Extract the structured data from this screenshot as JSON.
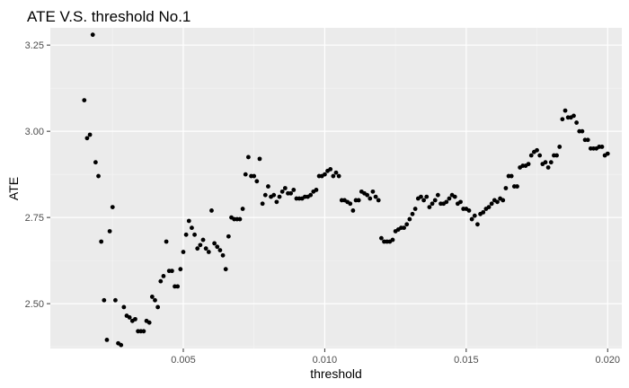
{
  "chart_data": {
    "type": "scatter",
    "title": "ATE V.S. threshold No.1",
    "xlabel": "threshold",
    "ylabel": "ATE",
    "xlim": [
      0.0003,
      0.0205
    ],
    "ylim": [
      2.37,
      3.3
    ],
    "xticks": [
      0.005,
      0.01,
      0.015,
      0.02
    ],
    "xtick_labels": [
      "0.005",
      "0.010",
      "0.015",
      "0.020"
    ],
    "yticks": [
      2.5,
      2.75,
      3.0,
      3.25
    ],
    "ytick_labels": [
      "2.50",
      "2.75",
      "3.00",
      "3.25"
    ],
    "grid": true,
    "legend": "none",
    "point_color": "#000000",
    "panel_color": "#ebebeb",
    "points": [
      [
        0.0015,
        3.09
      ],
      [
        0.0016,
        2.98
      ],
      [
        0.0017,
        2.99
      ],
      [
        0.0018,
        3.28
      ],
      [
        0.0019,
        2.91
      ],
      [
        0.002,
        2.87
      ],
      [
        0.0021,
        2.68
      ],
      [
        0.0022,
        2.51
      ],
      [
        0.0023,
        2.395
      ],
      [
        0.0024,
        2.71
      ],
      [
        0.0025,
        2.78
      ],
      [
        0.0026,
        2.51
      ],
      [
        0.0027,
        2.385
      ],
      [
        0.0028,
        2.38
      ],
      [
        0.0029,
        2.49
      ],
      [
        0.003,
        2.465
      ],
      [
        0.0031,
        2.46
      ],
      [
        0.0032,
        2.45
      ],
      [
        0.0033,
        2.455
      ],
      [
        0.0034,
        2.42
      ],
      [
        0.0035,
        2.42
      ],
      [
        0.0036,
        2.42
      ],
      [
        0.0037,
        2.45
      ],
      [
        0.0038,
        2.445
      ],
      [
        0.0039,
        2.52
      ],
      [
        0.004,
        2.51
      ],
      [
        0.0041,
        2.49
      ],
      [
        0.0042,
        2.565
      ],
      [
        0.0043,
        2.58
      ],
      [
        0.0044,
        2.68
      ],
      [
        0.0045,
        2.595
      ],
      [
        0.0046,
        2.595
      ],
      [
        0.0047,
        2.55
      ],
      [
        0.0048,
        2.55
      ],
      [
        0.0049,
        2.6
      ],
      [
        0.005,
        2.65
      ],
      [
        0.0051,
        2.7
      ],
      [
        0.0052,
        2.74
      ],
      [
        0.0053,
        2.72
      ],
      [
        0.0054,
        2.7
      ],
      [
        0.0055,
        2.66
      ],
      [
        0.0056,
        2.67
      ],
      [
        0.0057,
        2.685
      ],
      [
        0.0058,
        2.66
      ],
      [
        0.0059,
        2.65
      ],
      [
        0.006,
        2.77
      ],
      [
        0.0061,
        2.675
      ],
      [
        0.0062,
        2.665
      ],
      [
        0.0063,
        2.655
      ],
      [
        0.0064,
        2.64
      ],
      [
        0.0065,
        2.6
      ],
      [
        0.0066,
        2.695
      ],
      [
        0.0067,
        2.75
      ],
      [
        0.0068,
        2.745
      ],
      [
        0.0069,
        2.745
      ],
      [
        0.007,
        2.745
      ],
      [
        0.0071,
        2.775
      ],
      [
        0.0072,
        2.875
      ],
      [
        0.0073,
        2.925
      ],
      [
        0.0074,
        2.87
      ],
      [
        0.0075,
        2.87
      ],
      [
        0.0076,
        2.855
      ],
      [
        0.0077,
        2.92
      ],
      [
        0.0078,
        2.79
      ],
      [
        0.0079,
        2.815
      ],
      [
        0.008,
        2.84
      ],
      [
        0.0081,
        2.81
      ],
      [
        0.0082,
        2.815
      ],
      [
        0.0083,
        2.795
      ],
      [
        0.0084,
        2.81
      ],
      [
        0.0085,
        2.825
      ],
      [
        0.0086,
        2.835
      ],
      [
        0.0087,
        2.82
      ],
      [
        0.0088,
        2.82
      ],
      [
        0.0089,
        2.83
      ],
      [
        0.009,
        2.805
      ],
      [
        0.0091,
        2.805
      ],
      [
        0.0092,
        2.805
      ],
      [
        0.0093,
        2.81
      ],
      [
        0.0094,
        2.81
      ],
      [
        0.0095,
        2.815
      ],
      [
        0.0096,
        2.825
      ],
      [
        0.0097,
        2.83
      ],
      [
        0.0098,
        2.87
      ],
      [
        0.0099,
        2.87
      ],
      [
        0.01,
        2.875
      ],
      [
        0.0101,
        2.885
      ],
      [
        0.0102,
        2.89
      ],
      [
        0.0103,
        2.87
      ],
      [
        0.0104,
        2.88
      ],
      [
        0.0105,
        2.87
      ],
      [
        0.0106,
        2.8
      ],
      [
        0.0107,
        2.8
      ],
      [
        0.0108,
        2.795
      ],
      [
        0.0109,
        2.79
      ],
      [
        0.011,
        2.77
      ],
      [
        0.0111,
        2.8
      ],
      [
        0.0112,
        2.8
      ],
      [
        0.0113,
        2.825
      ],
      [
        0.0114,
        2.82
      ],
      [
        0.0115,
        2.815
      ],
      [
        0.0116,
        2.805
      ],
      [
        0.0117,
        2.825
      ],
      [
        0.0118,
        2.81
      ],
      [
        0.0119,
        2.8
      ],
      [
        0.012,
        2.69
      ],
      [
        0.0121,
        2.68
      ],
      [
        0.0122,
        2.68
      ],
      [
        0.0123,
        2.68
      ],
      [
        0.0124,
        2.685
      ],
      [
        0.0125,
        2.71
      ],
      [
        0.0126,
        2.715
      ],
      [
        0.0127,
        2.72
      ],
      [
        0.0128,
        2.72
      ],
      [
        0.0129,
        2.73
      ],
      [
        0.013,
        2.745
      ],
      [
        0.0131,
        2.76
      ],
      [
        0.0132,
        2.775
      ],
      [
        0.0133,
        2.805
      ],
      [
        0.0134,
        2.81
      ],
      [
        0.0135,
        2.8
      ],
      [
        0.0136,
        2.81
      ],
      [
        0.0137,
        2.78
      ],
      [
        0.0138,
        2.79
      ],
      [
        0.0139,
        2.8
      ],
      [
        0.014,
        2.815
      ],
      [
        0.0141,
        2.79
      ],
      [
        0.0142,
        2.79
      ],
      [
        0.0143,
        2.795
      ],
      [
        0.0144,
        2.805
      ],
      [
        0.0145,
        2.815
      ],
      [
        0.0146,
        2.81
      ],
      [
        0.0147,
        2.79
      ],
      [
        0.0148,
        2.795
      ],
      [
        0.0149,
        2.775
      ],
      [
        0.015,
        2.775
      ],
      [
        0.0151,
        2.77
      ],
      [
        0.0152,
        2.745
      ],
      [
        0.0153,
        2.755
      ],
      [
        0.0154,
        2.73
      ],
      [
        0.0155,
        2.76
      ],
      [
        0.0156,
        2.765
      ],
      [
        0.0157,
        2.775
      ],
      [
        0.0158,
        2.78
      ],
      [
        0.0159,
        2.79
      ],
      [
        0.016,
        2.8
      ],
      [
        0.0161,
        2.795
      ],
      [
        0.0162,
        2.805
      ],
      [
        0.0163,
        2.8
      ],
      [
        0.0164,
        2.835
      ],
      [
        0.0165,
        2.87
      ],
      [
        0.0166,
        2.87
      ],
      [
        0.0167,
        2.84
      ],
      [
        0.0168,
        2.84
      ],
      [
        0.0169,
        2.895
      ],
      [
        0.017,
        2.9
      ],
      [
        0.0171,
        2.9
      ],
      [
        0.0172,
        2.905
      ],
      [
        0.0173,
        2.93
      ],
      [
        0.0174,
        2.94
      ],
      [
        0.0175,
        2.945
      ],
      [
        0.0176,
        2.93
      ],
      [
        0.0177,
        2.905
      ],
      [
        0.0178,
        2.91
      ],
      [
        0.0179,
        2.895
      ],
      [
        0.018,
        2.91
      ],
      [
        0.0181,
        2.93
      ],
      [
        0.0182,
        2.93
      ],
      [
        0.0183,
        2.955
      ],
      [
        0.0184,
        3.035
      ],
      [
        0.0185,
        3.06
      ],
      [
        0.0186,
        3.04
      ],
      [
        0.0187,
        3.04
      ],
      [
        0.0188,
        3.045
      ],
      [
        0.0189,
        3.025
      ],
      [
        0.019,
        3.0
      ],
      [
        0.0191,
        3.0
      ],
      [
        0.0192,
        2.975
      ],
      [
        0.0193,
        2.975
      ],
      [
        0.0194,
        2.95
      ],
      [
        0.0195,
        2.95
      ],
      [
        0.0196,
        2.95
      ],
      [
        0.0197,
        2.955
      ],
      [
        0.0198,
        2.955
      ],
      [
        0.0199,
        2.93
      ],
      [
        0.02,
        2.935
      ]
    ]
  }
}
